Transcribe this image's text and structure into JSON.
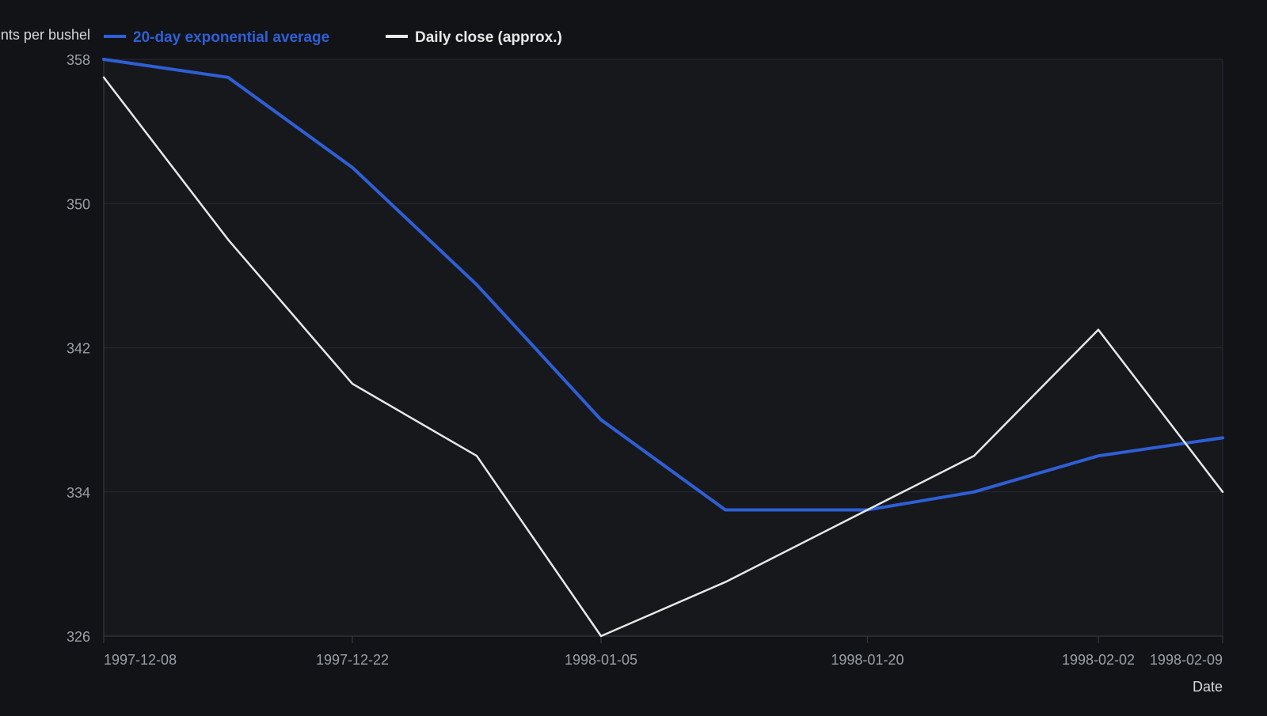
{
  "chart_data": {
    "type": "line",
    "title": "",
    "xlabel": "Date",
    "ylabel": "Cents per bushel",
    "x": [
      "1997-12-08",
      "1997-12-15",
      "1997-12-22",
      "1997-12-29",
      "1998-01-05",
      "1998-01-12",
      "1998-01-20",
      "1998-01-26",
      "1998-02-02",
      "1998-02-09"
    ],
    "x_tick_labels": [
      "1997-12-08",
      "1997-12-22",
      "1998-01-05",
      "1998-01-20",
      "1998-02-02",
      "1998-02-09"
    ],
    "ylim": [
      326,
      358
    ],
    "y_ticks": [
      326,
      334,
      342,
      350,
      358
    ],
    "grid": true,
    "legend_position": "top-left",
    "series": [
      {
        "name": "20-day exponential average",
        "color": "#2f5fd6",
        "values": [
          358,
          357,
          352,
          345.5,
          338,
          333,
          333,
          334,
          336,
          337
        ]
      },
      {
        "name": "Daily close (approx.)",
        "color": "#e8e8e8",
        "values": [
          357,
          348,
          340,
          336,
          326,
          329,
          333,
          336,
          343,
          334
        ]
      }
    ]
  },
  "colors": {
    "background": "#111317",
    "plot_background": "#16181c",
    "grid": "#262a30",
    "axis": "#3a3f46"
  }
}
